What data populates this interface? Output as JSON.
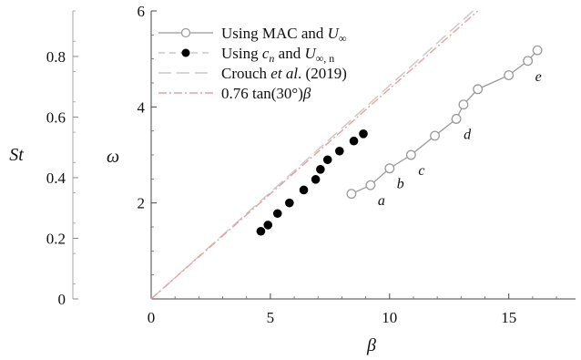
{
  "chart_data": {
    "type": "scatter",
    "xlabel": "β",
    "ylabel": "ω",
    "secondary_ylabel": "St",
    "xlim": [
      0,
      17.8
    ],
    "ylim": [
      0,
      6
    ],
    "secondary_ylim": [
      0,
      0.95
    ],
    "x_ticks": [
      "0",
      "5",
      "10",
      "15"
    ],
    "x_tick_values": [
      0,
      5,
      10,
      15
    ],
    "y_ticks": [
      "2",
      "4",
      "6"
    ],
    "y_tick_values": [
      2,
      4,
      6
    ],
    "secondary_y_ticks": [
      "0",
      "0.2",
      "0.4",
      "0.6",
      "0.8"
    ],
    "secondary_y_tick_values": [
      0,
      0.2,
      0.4,
      0.6,
      0.8
    ],
    "legend_position": "top-left",
    "series": [
      {
        "name": "Using MAC and U∞",
        "style": "open-circle-line",
        "color": "#9a9a9a",
        "x": [
          8.4,
          9.2,
          10.0,
          10.9,
          11.9,
          12.8,
          13.1,
          13.7,
          15.0,
          15.8,
          16.2
        ],
        "y": [
          2.19,
          2.37,
          2.72,
          3.0,
          3.4,
          3.75,
          4.05,
          4.37,
          4.66,
          4.96,
          5.18
        ]
      },
      {
        "name": "Using cn and U∞,n",
        "style": "filled-circle",
        "color": "#000000",
        "x": [
          4.6,
          4.9,
          5.3,
          5.8,
          6.4,
          6.9,
          7.1,
          7.4,
          7.9,
          8.5,
          8.9
        ],
        "y": [
          1.41,
          1.54,
          1.78,
          2.0,
          2.27,
          2.49,
          2.7,
          2.9,
          3.08,
          3.29,
          3.44
        ]
      },
      {
        "name": "Crouch et al. (2019)",
        "style": "dashed-line",
        "color": "#c8c8c8",
        "x": [
          0,
          13.5
        ],
        "y": [
          0,
          6
        ]
      },
      {
        "name": "0.76 tan(30°)β",
        "style": "dashdot-line",
        "color": "#e8a0a0",
        "x": [
          0,
          13.7
        ],
        "y": [
          0,
          6
        ]
      }
    ],
    "annotations": [
      {
        "text": "a",
        "x": 9.2,
        "y": 2.37
      },
      {
        "text": "b",
        "x": 10.0,
        "y": 2.72
      },
      {
        "text": "c",
        "x": 10.9,
        "y": 3.0
      },
      {
        "text": "d",
        "x": 12.8,
        "y": 3.75
      },
      {
        "text": "e",
        "x": 15.8,
        "y": 4.96
      }
    ]
  },
  "legend": {
    "mac": {
      "pre": "Using MAC and ",
      "sym": "U",
      "sub": "∞"
    },
    "cn": {
      "pre": "Using ",
      "sym1": "c",
      "sub1": "n",
      "mid": " and ",
      "sym2": "U",
      "sub2": "∞, n"
    },
    "crouch": {
      "pre": "Crouch ",
      "em": "et al",
      "post": ". (2019)"
    },
    "fit": {
      "pre": "0.76 tan(30°)",
      "em": "β"
    }
  }
}
